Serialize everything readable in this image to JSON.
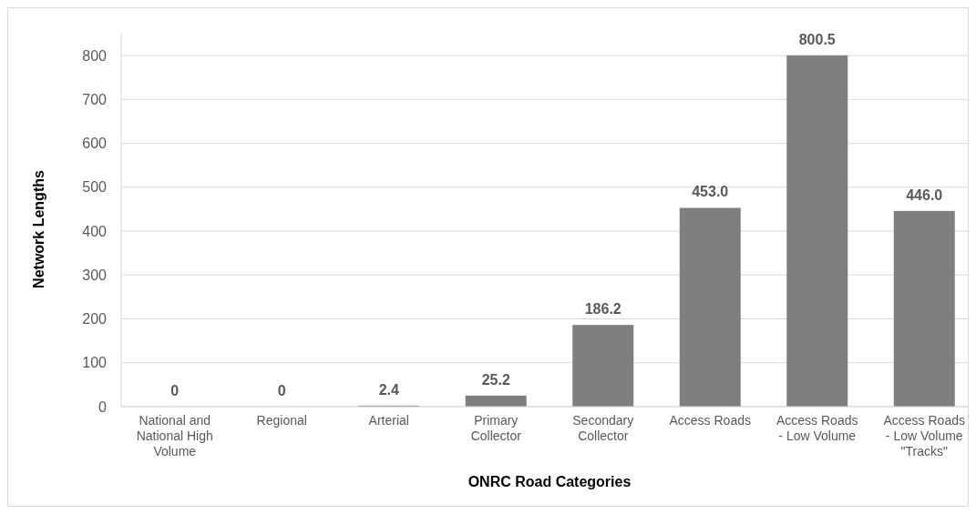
{
  "chart_data": {
    "type": "bar",
    "xlabel": "ONRC Road Categories",
    "ylabel": "Network Lengths",
    "categories": [
      "National and National High Volume",
      "Regional",
      "Arterial",
      "Primary Collector",
      "Secondary Collector",
      "Access Roads",
      "Access Roads - Low Volume",
      "Access Roads - Low Volume \"Tracks\""
    ],
    "values": [
      0,
      0,
      2.4,
      25.2,
      186.2,
      453.0,
      800.5,
      446.0
    ],
    "value_labels": [
      "0",
      "0",
      "2.4",
      "25.2",
      "186.2",
      "453.0",
      "800.5",
      "446.0"
    ],
    "color": "#7f7f7f",
    "ylim": [
      0,
      850
    ],
    "yticks": [
      0,
      100,
      200,
      300,
      400,
      500,
      600,
      700,
      800
    ],
    "grid": "y"
  }
}
